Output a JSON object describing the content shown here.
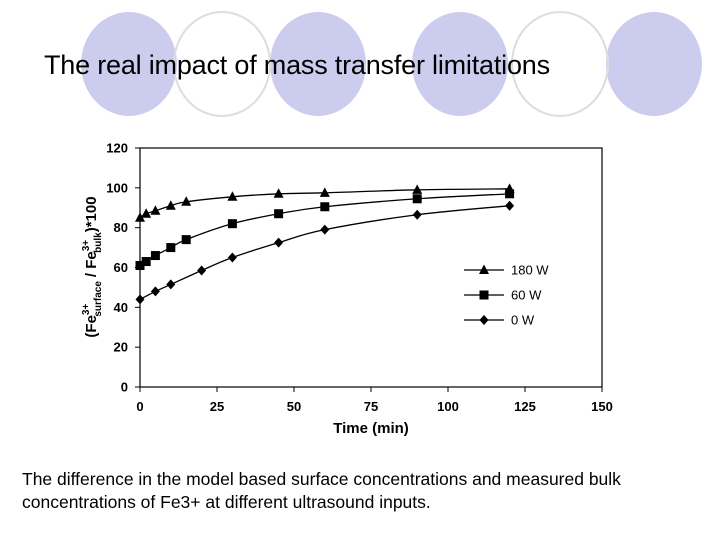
{
  "slide": {
    "title": "The real impact of mass transfer limitations",
    "caption": "The difference in the model based surface concentrations and measured bulk concentrations of Fe3+ at different ultrasound inputs.",
    "deco_color": "#ccccee",
    "deco_outline": "#dddddd"
  },
  "chart_data": {
    "type": "line",
    "title": "",
    "xlabel": "Time (min)",
    "ylabel": "(Fe3+surface / Fe3+bulk)*100",
    "ylabel_parts": {
      "open": "(Fe",
      "sup1": "3+",
      "sub1": "surface",
      "mid": "/ Fe",
      "sup2": "3+",
      "sub2": "bulk",
      "close": ")*100"
    },
    "xlim": [
      0,
      150
    ],
    "ylim": [
      0,
      120
    ],
    "xticks": [
      "0",
      "25",
      "50",
      "75",
      "100",
      "125",
      "150"
    ],
    "yticks": [
      "0",
      "20",
      "40",
      "60",
      "80",
      "100",
      "120"
    ],
    "grid": false,
    "legend_position": "right",
    "series": [
      {
        "name": "180 W",
        "marker": "triangle",
        "x": [
          0,
          2,
          5,
          10,
          15,
          30,
          45,
          60,
          90,
          120
        ],
        "y": [
          85,
          87,
          88.5,
          91,
          93,
          95.5,
          97,
          97.5,
          99,
          99.5
        ]
      },
      {
        "name": "60 W",
        "marker": "square",
        "x": [
          0,
          2,
          5,
          10,
          15,
          30,
          45,
          60,
          90,
          120
        ],
        "y": [
          61,
          63,
          66,
          70,
          74,
          82,
          87,
          90.5,
          94.5,
          97
        ]
      },
      {
        "name": "0 W",
        "marker": "diamond",
        "x": [
          0,
          5,
          10,
          20,
          30,
          45,
          60,
          90,
          120
        ],
        "y": [
          44,
          48,
          51.5,
          58.5,
          65,
          72.5,
          79,
          86.5,
          91
        ]
      }
    ]
  }
}
